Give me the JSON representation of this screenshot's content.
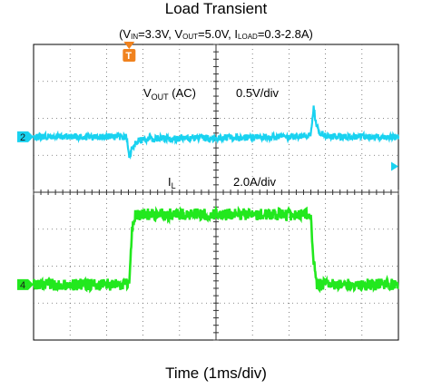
{
  "chart_data": {
    "type": "line",
    "title": "Load Transient",
    "subtitle": {
      "parts": [
        {
          "t": "(V"
        },
        {
          "sub": "IN"
        },
        {
          "t": "=3.3V, V"
        },
        {
          "sub": "OUT"
        },
        {
          "t": "=5.0V, I"
        },
        {
          "sub": "LOAD"
        },
        {
          "t": "=0.3-2.8A)"
        }
      ]
    },
    "xlabel": "Time (1ms/div)",
    "grid": true,
    "x_divisions": 10,
    "y_divisions": 8,
    "trigger_marker": "T",
    "series": [
      {
        "name": "VOUT (AC)",
        "label_main": "V",
        "label_sub": "OUT",
        "label_suffix": " (AC)",
        "scale": "0.5V/div",
        "channel": "2",
        "color": "#19d2f0",
        "baseline_div": 2.5,
        "x_div": [
          0,
          2.55,
          2.58,
          2.62,
          2.68,
          2.8,
          3.2,
          5.0,
          7.5,
          7.6,
          7.68,
          7.72,
          7.8,
          8.1,
          10
        ],
        "y_div": [
          2.5,
          2.5,
          2.8,
          3.05,
          2.85,
          2.62,
          2.55,
          2.53,
          2.5,
          2.4,
          1.7,
          2.0,
          2.35,
          2.5,
          2.5
        ]
      },
      {
        "name": "IL",
        "label_main": "I",
        "label_sub": "L",
        "label_suffix": "",
        "scale": "2.0A/div",
        "channel": "4",
        "color": "#22e81e",
        "baseline_div": 6.5,
        "x_div": [
          0,
          2.62,
          2.7,
          2.8,
          7.6,
          7.65,
          7.75,
          10
        ],
        "y_div": [
          6.5,
          6.5,
          5.0,
          4.6,
          4.6,
          5.6,
          6.5,
          6.5
        ]
      }
    ]
  }
}
